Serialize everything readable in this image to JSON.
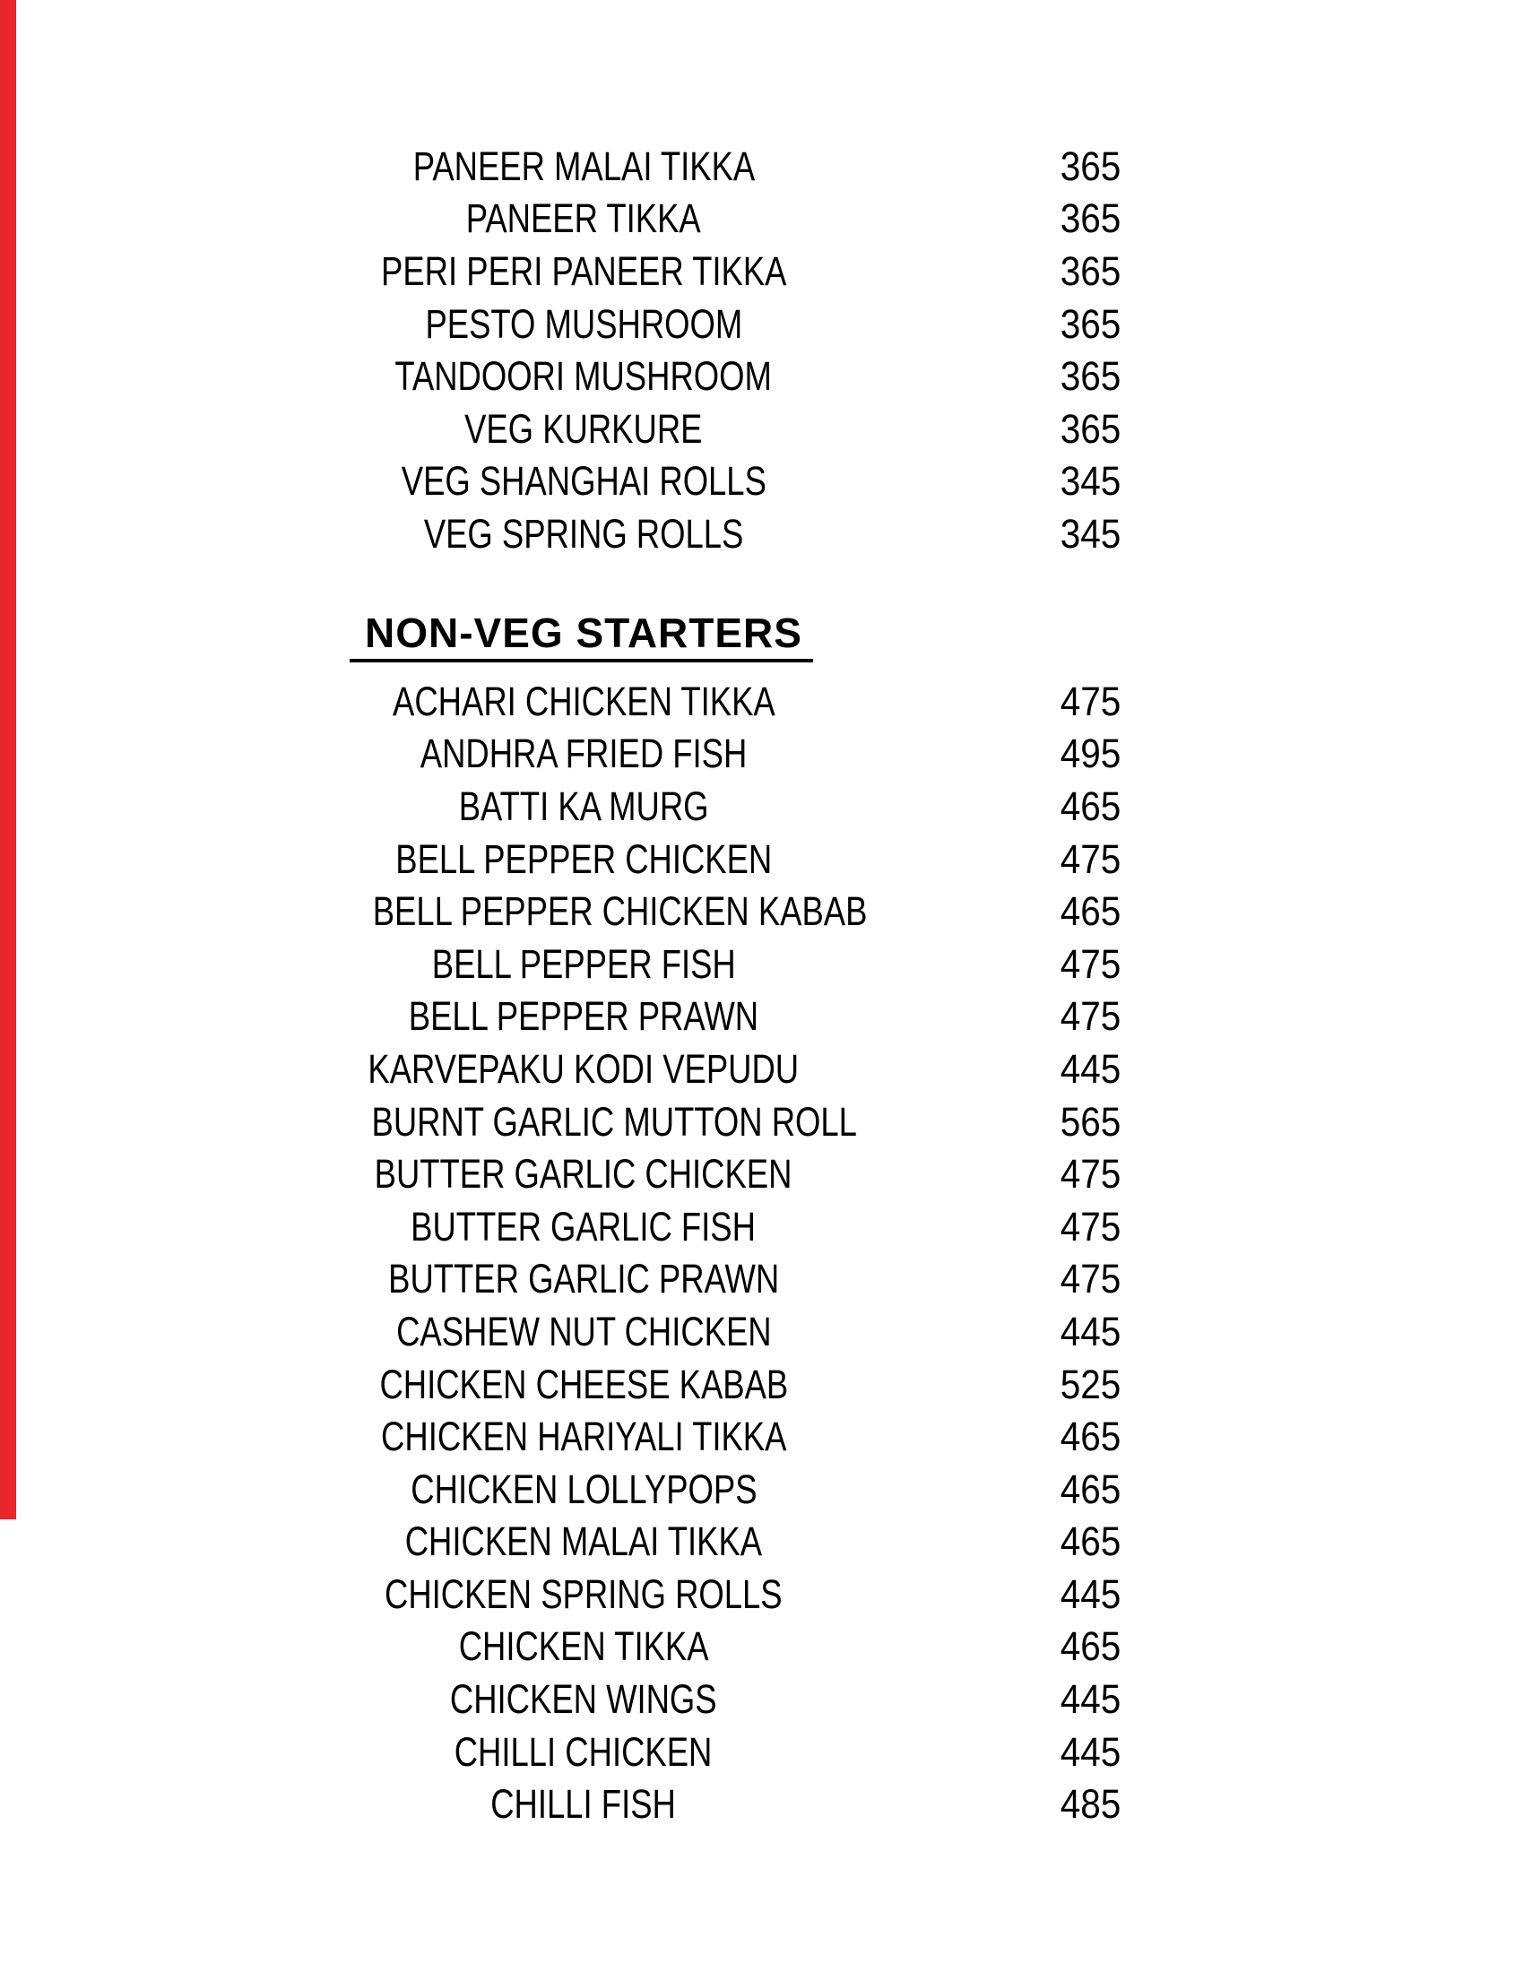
{
  "colors": {
    "background": "#ffffff",
    "text": "#000000",
    "left_stripe": "#e8262c"
  },
  "sections": [
    {
      "header": null,
      "items": [
        {
          "name": "PANEER MALAI TIKKA",
          "price": "365"
        },
        {
          "name": "PANEER TIKKA",
          "price": "365"
        },
        {
          "name": "PERI PERI PANEER TIKKA",
          "price": "365"
        },
        {
          "name": "PESTO MUSHROOM",
          "price": "365"
        },
        {
          "name": "TANDOORI MUSHROOM",
          "price": "365"
        },
        {
          "name": "VEG KURKURE",
          "price": "365"
        },
        {
          "name": "VEG SHANGHAI ROLLS",
          "price": "345"
        },
        {
          "name": "VEG SPRING ROLLS",
          "price": "345"
        }
      ]
    },
    {
      "header": "NON-VEG STARTERS",
      "items": [
        {
          "name": "ACHARI CHICKEN TIKKA",
          "price": "475"
        },
        {
          "name": "ANDHRA FRIED FISH",
          "price": "495"
        },
        {
          "name": "BATTI KA MURG",
          "price": "465"
        },
        {
          "name": "BELL PEPPER CHICKEN",
          "price": "475"
        },
        {
          "name": "BELL PEPPER CHICKEN KABAB",
          "price": "465"
        },
        {
          "name": "BELL PEPPER FISH",
          "price": "475"
        },
        {
          "name": "BELL PEPPER PRAWN",
          "price": "475"
        },
        {
          "name": "KARVEPAKU KODI VEPUDU",
          "price": "445"
        },
        {
          "name": "BURNT GARLIC MUTTON ROLL",
          "price": "565"
        },
        {
          "name": "BUTTER GARLIC CHICKEN",
          "price": "475"
        },
        {
          "name": "BUTTER GARLIC FISH",
          "price": "475"
        },
        {
          "name": "BUTTER GARLIC PRAWN",
          "price": "475"
        },
        {
          "name": "CASHEW NUT CHICKEN",
          "price": "445"
        },
        {
          "name": "CHICKEN CHEESE KABAB",
          "price": "525"
        },
        {
          "name": "CHICKEN HARIYALI TIKKA",
          "price": "465"
        },
        {
          "name": "CHICKEN LOLLYPOPS",
          "price": "465"
        },
        {
          "name": "CHICKEN MALAI TIKKA",
          "price": "465"
        },
        {
          "name": "CHICKEN SPRING ROLLS",
          "price": "445"
        },
        {
          "name": "CHICKEN TIKKA",
          "price": "465"
        },
        {
          "name": "CHICKEN WINGS",
          "price": "445"
        },
        {
          "name": "CHILLI CHICKEN",
          "price": "445"
        },
        {
          "name": "CHILLI FISH",
          "price": "485"
        }
      ]
    }
  ]
}
